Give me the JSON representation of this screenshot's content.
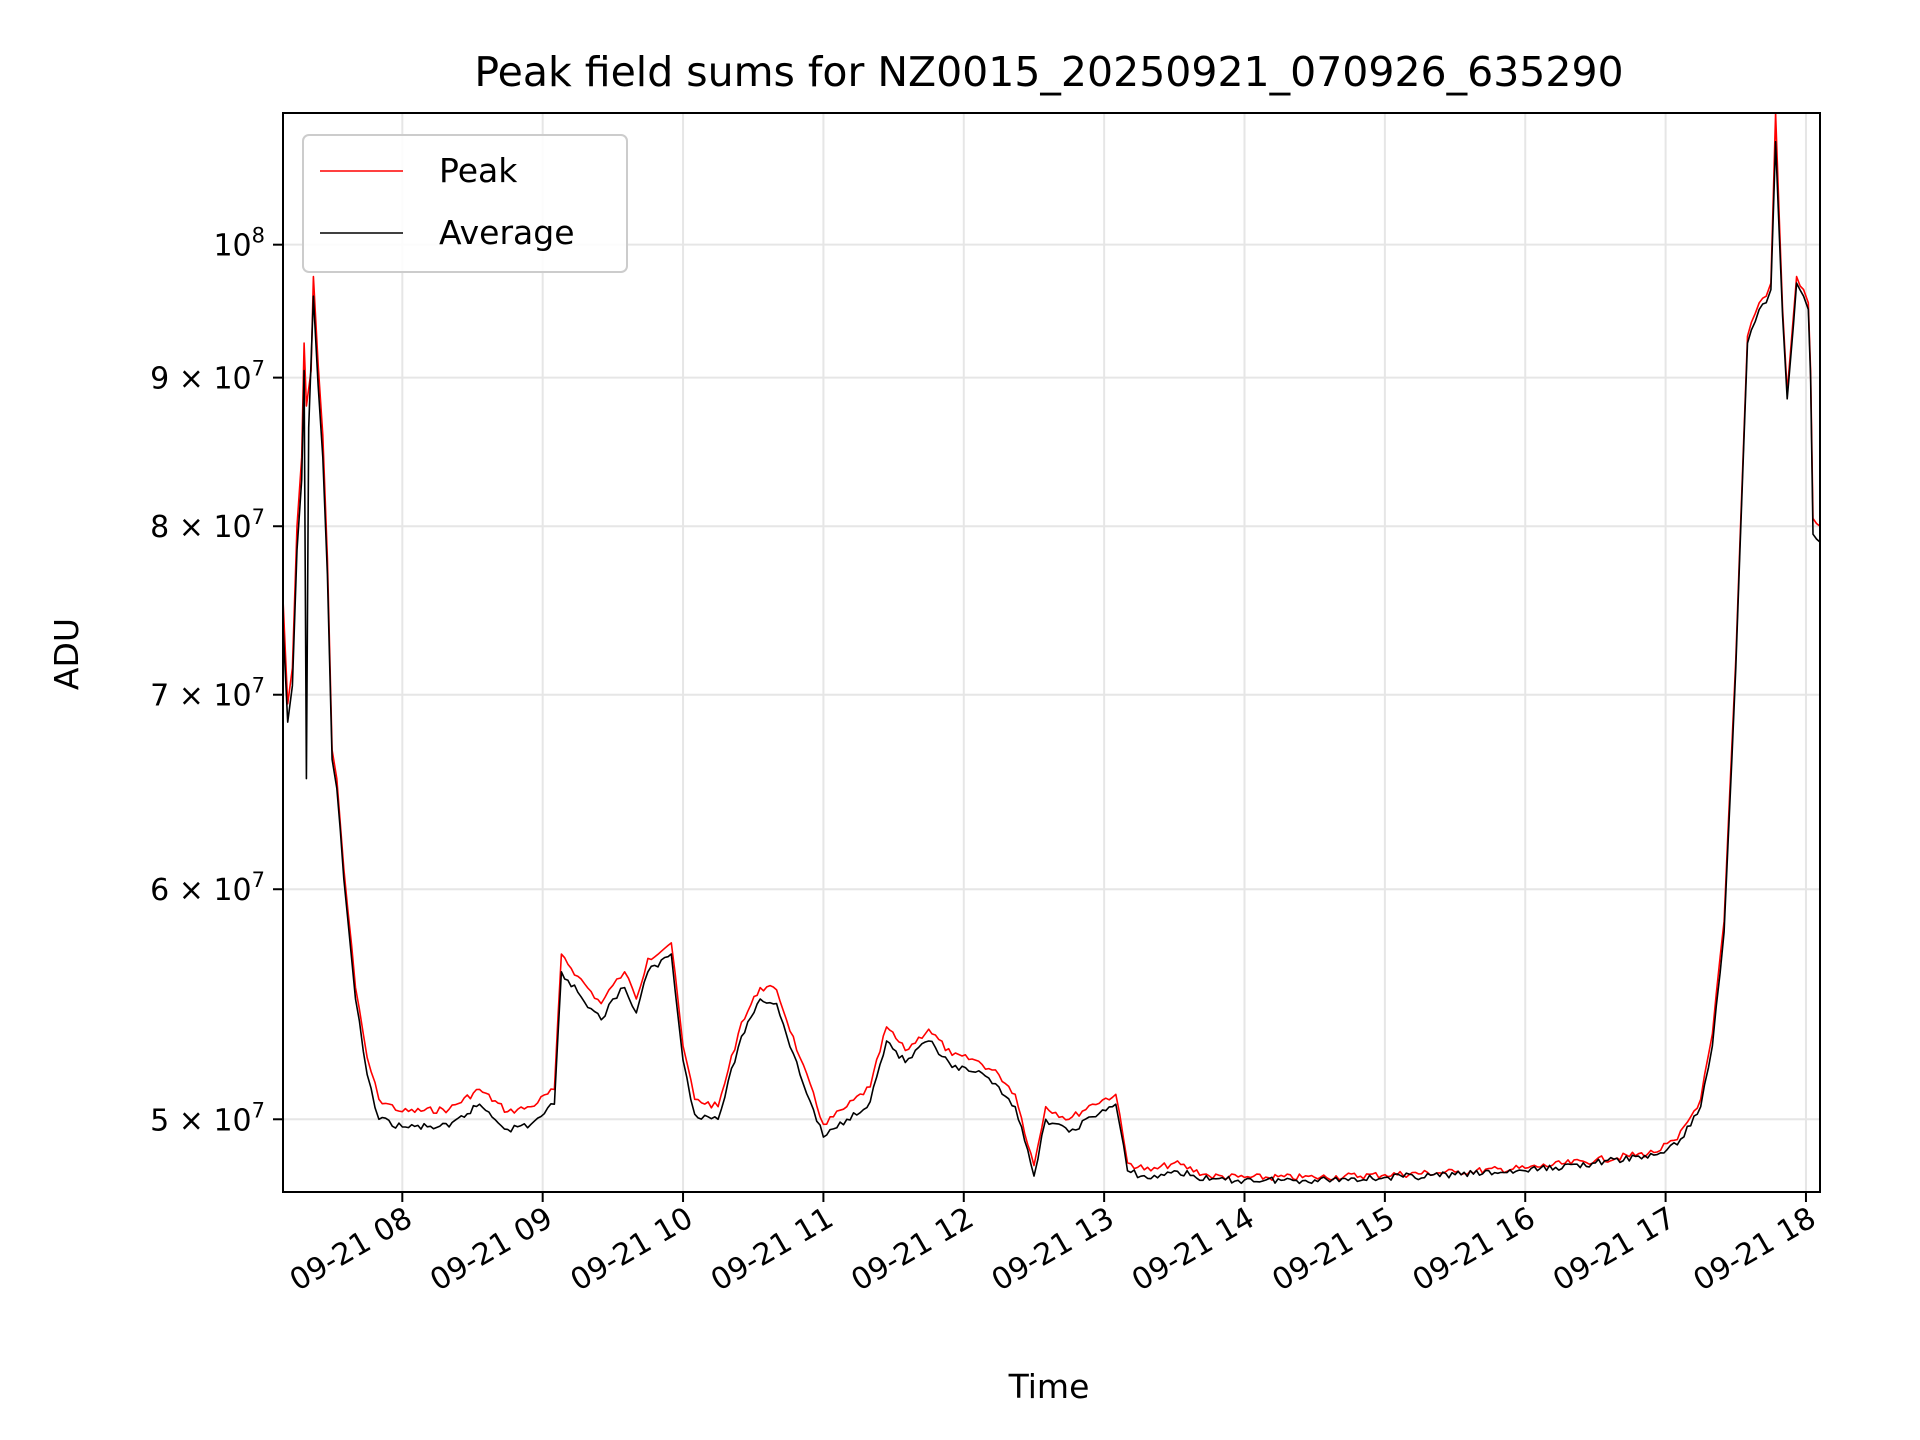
{
  "chart_data": {
    "type": "line",
    "title": "Peak field sums for NZ0015_20250921_070926_635290",
    "xlabel": "Time",
    "ylabel": "ADU",
    "x_scale": "time",
    "y_scale": "log",
    "xlim": [
      "2025-09-21 07:09",
      "2025-09-21 18:06"
    ],
    "ylim": [
      47200000,
      111000000
    ],
    "grid": true,
    "legend_position": "upper-left",
    "x_ticks": [
      {
        "value": "2025-09-21 08:00",
        "label": "09-21 08"
      },
      {
        "value": "2025-09-21 09:00",
        "label": "09-21 09"
      },
      {
        "value": "2025-09-21 10:00",
        "label": "09-21 10"
      },
      {
        "value": "2025-09-21 11:00",
        "label": "09-21 11"
      },
      {
        "value": "2025-09-21 12:00",
        "label": "09-21 12"
      },
      {
        "value": "2025-09-21 13:00",
        "label": "09-21 13"
      },
      {
        "value": "2025-09-21 14:00",
        "label": "09-21 14"
      },
      {
        "value": "2025-09-21 15:00",
        "label": "09-21 15"
      },
      {
        "value": "2025-09-21 16:00",
        "label": "09-21 16"
      },
      {
        "value": "2025-09-21 17:00",
        "label": "09-21 17"
      },
      {
        "value": "2025-09-21 18:00",
        "label": "09-21 18"
      }
    ],
    "y_ticks": [
      {
        "value": 50000000,
        "mantissa": "5",
        "exponent": "7"
      },
      {
        "value": 60000000,
        "mantissa": "6",
        "exponent": "7"
      },
      {
        "value": 70000000,
        "mantissa": "7",
        "exponent": "7"
      },
      {
        "value": 80000000,
        "mantissa": "8",
        "exponent": "7"
      },
      {
        "value": 90000000,
        "mantissa": "9",
        "exponent": "7"
      },
      {
        "value": 100000000,
        "mantissa": "",
        "exponent": "8"
      }
    ],
    "series": [
      {
        "name": "Peak",
        "color": "#ff0000",
        "points": [
          [
            "2025-09-21 07:09",
            75500000
          ],
          [
            "2025-09-21 07:11",
            69500000
          ],
          [
            "2025-09-21 07:13",
            71500000
          ],
          [
            "2025-09-21 07:15",
            80000000
          ],
          [
            "2025-09-21 07:17",
            84500000
          ],
          [
            "2025-09-21 07:18",
            92500000
          ],
          [
            "2025-09-21 07:19",
            88000000
          ],
          [
            "2025-09-21 07:21",
            90500000
          ],
          [
            "2025-09-21 07:22",
            97500000
          ],
          [
            "2025-09-21 07:24",
            91000000
          ],
          [
            "2025-09-21 07:26",
            86000000
          ],
          [
            "2025-09-21 07:28",
            78000000
          ],
          [
            "2025-09-21 07:30",
            67000000
          ],
          [
            "2025-09-21 07:32",
            65500000
          ],
          [
            "2025-09-21 07:35",
            61000000
          ],
          [
            "2025-09-21 07:40",
            55500000
          ],
          [
            "2025-09-21 07:45",
            52500000
          ],
          [
            "2025-09-21 07:50",
            50800000
          ],
          [
            "2025-09-21 08:00",
            50300000
          ],
          [
            "2025-09-21 08:20",
            50400000
          ],
          [
            "2025-09-21 08:33",
            51200000
          ],
          [
            "2025-09-21 08:45",
            50300000
          ],
          [
            "2025-09-21 08:55",
            50500000
          ],
          [
            "2025-09-21 09:05",
            51200000
          ],
          [
            "2025-09-21 09:08",
            57000000
          ],
          [
            "2025-09-21 09:15",
            56000000
          ],
          [
            "2025-09-21 09:25",
            54800000
          ],
          [
            "2025-09-21 09:30",
            55600000
          ],
          [
            "2025-09-21 09:35",
            56200000
          ],
          [
            "2025-09-21 09:40",
            55000000
          ],
          [
            "2025-09-21 09:45",
            56800000
          ],
          [
            "2025-09-21 09:55",
            57500000
          ],
          [
            "2025-09-21 10:00",
            53000000
          ],
          [
            "2025-09-21 10:05",
            50800000
          ],
          [
            "2025-09-21 10:15",
            50500000
          ],
          [
            "2025-09-21 10:25",
            54000000
          ],
          [
            "2025-09-21 10:33",
            55500000
          ],
          [
            "2025-09-21 10:40",
            55400000
          ],
          [
            "2025-09-21 10:50",
            52500000
          ],
          [
            "2025-09-21 11:00",
            49800000
          ],
          [
            "2025-09-21 11:10",
            50500000
          ],
          [
            "2025-09-21 11:20",
            51300000
          ],
          [
            "2025-09-21 11:27",
            53800000
          ],
          [
            "2025-09-21 11:35",
            52800000
          ],
          [
            "2025-09-21 11:45",
            53700000
          ],
          [
            "2025-09-21 11:55",
            52600000
          ],
          [
            "2025-09-21 12:05",
            52400000
          ],
          [
            "2025-09-21 12:15",
            51800000
          ],
          [
            "2025-09-21 12:22",
            51000000
          ],
          [
            "2025-09-21 12:30",
            48200000
          ],
          [
            "2025-09-21 12:35",
            50500000
          ],
          [
            "2025-09-21 12:45",
            50000000
          ],
          [
            "2025-09-21 12:55",
            50600000
          ],
          [
            "2025-09-21 13:05",
            51000000
          ],
          [
            "2025-09-21 13:10",
            48300000
          ],
          [
            "2025-09-21 13:20",
            48000000
          ],
          [
            "2025-09-21 13:30",
            48300000
          ],
          [
            "2025-09-21 13:45",
            47800000
          ],
          [
            "2025-09-21 14:00",
            47750000
          ],
          [
            "2025-09-21 14:30",
            47750000
          ],
          [
            "2025-09-21 15:00",
            47850000
          ],
          [
            "2025-09-21 15:30",
            47950000
          ],
          [
            "2025-09-21 16:00",
            48100000
          ],
          [
            "2025-09-21 16:30",
            48400000
          ],
          [
            "2025-09-21 16:55",
            48700000
          ],
          [
            "2025-09-21 17:05",
            49200000
          ],
          [
            "2025-09-21 17:15",
            50800000
          ],
          [
            "2025-09-21 17:20",
            53500000
          ],
          [
            "2025-09-21 17:25",
            58500000
          ],
          [
            "2025-09-21 17:30",
            72000000
          ],
          [
            "2025-09-21 17:35",
            93000000
          ],
          [
            "2025-09-21 17:40",
            95500000
          ],
          [
            "2025-09-21 17:43",
            96000000
          ],
          [
            "2025-09-21 17:45",
            97000000
          ],
          [
            "2025-09-21 17:47",
            111000000
          ],
          [
            "2025-09-21 17:50",
            95000000
          ],
          [
            "2025-09-21 17:52",
            89000000
          ],
          [
            "2025-09-21 17:56",
            97500000
          ],
          [
            "2025-09-21 17:59",
            96500000
          ],
          [
            "2025-09-21 18:01",
            95500000
          ],
          [
            "2025-09-21 18:02",
            90500000
          ],
          [
            "2025-09-21 18:03",
            80500000
          ],
          [
            "2025-09-21 18:06",
            80000000
          ]
        ]
      },
      {
        "name": "Average",
        "color": "#000000",
        "points": [
          [
            "2025-09-21 07:09",
            74000000
          ],
          [
            "2025-09-21 07:11",
            68500000
          ],
          [
            "2025-09-21 07:13",
            70500000
          ],
          [
            "2025-09-21 07:15",
            78500000
          ],
          [
            "2025-09-21 07:17",
            83000000
          ],
          [
            "2025-09-21 07:18",
            90500000
          ],
          [
            "2025-09-21 07:19",
            65500000
          ],
          [
            "2025-09-21 07:20",
            86500000
          ],
          [
            "2025-09-21 07:22",
            96000000
          ],
          [
            "2025-09-21 07:24",
            89500000
          ],
          [
            "2025-09-21 07:26",
            84500000
          ],
          [
            "2025-09-21 07:28",
            77000000
          ],
          [
            "2025-09-21 07:30",
            66500000
          ],
          [
            "2025-09-21 07:32",
            65000000
          ],
          [
            "2025-09-21 07:35",
            60500000
          ],
          [
            "2025-09-21 07:40",
            55000000
          ],
          [
            "2025-09-21 07:45",
            51800000
          ],
          [
            "2025-09-21 07:50",
            50000000
          ],
          [
            "2025-09-21 08:00",
            49700000
          ],
          [
            "2025-09-21 08:20",
            49700000
          ],
          [
            "2025-09-21 08:33",
            50600000
          ],
          [
            "2025-09-21 08:45",
            49600000
          ],
          [
            "2025-09-21 08:55",
            49800000
          ],
          [
            "2025-09-21 09:05",
            50600000
          ],
          [
            "2025-09-21 09:08",
            56200000
          ],
          [
            "2025-09-21 09:15",
            55300000
          ],
          [
            "2025-09-21 09:25",
            54100000
          ],
          [
            "2025-09-21 09:30",
            55000000
          ],
          [
            "2025-09-21 09:35",
            55500000
          ],
          [
            "2025-09-21 09:40",
            54400000
          ],
          [
            "2025-09-21 09:45",
            56200000
          ],
          [
            "2025-09-21 09:55",
            57000000
          ],
          [
            "2025-09-21 10:00",
            52400000
          ],
          [
            "2025-09-21 10:05",
            50200000
          ],
          [
            "2025-09-21 10:15",
            50000000
          ],
          [
            "2025-09-21 10:25",
            53400000
          ],
          [
            "2025-09-21 10:33",
            55000000
          ],
          [
            "2025-09-21 10:40",
            54800000
          ],
          [
            "2025-09-21 10:50",
            51800000
          ],
          [
            "2025-09-21 11:00",
            49300000
          ],
          [
            "2025-09-21 11:10",
            50000000
          ],
          [
            "2025-09-21 11:20",
            50700000
          ],
          [
            "2025-09-21 11:27",
            53200000
          ],
          [
            "2025-09-21 11:35",
            52300000
          ],
          [
            "2025-09-21 11:45",
            53200000
          ],
          [
            "2025-09-21 11:55",
            52100000
          ],
          [
            "2025-09-21 12:05",
            51900000
          ],
          [
            "2025-09-21 12:15",
            51300000
          ],
          [
            "2025-09-21 12:22",
            50500000
          ],
          [
            "2025-09-21 12:30",
            47800000
          ],
          [
            "2025-09-21 12:35",
            50000000
          ],
          [
            "2025-09-21 12:45",
            49500000
          ],
          [
            "2025-09-21 12:55",
            50100000
          ],
          [
            "2025-09-21 13:05",
            50600000
          ],
          [
            "2025-09-21 13:10",
            48000000
          ],
          [
            "2025-09-21 13:20",
            47700000
          ],
          [
            "2025-09-21 13:30",
            48000000
          ],
          [
            "2025-09-21 13:45",
            47650000
          ],
          [
            "2025-09-21 14:00",
            47650000
          ],
          [
            "2025-09-21 14:30",
            47650000
          ],
          [
            "2025-09-21 15:00",
            47750000
          ],
          [
            "2025-09-21 15:30",
            47850000
          ],
          [
            "2025-09-21 16:00",
            48000000
          ],
          [
            "2025-09-21 16:30",
            48300000
          ],
          [
            "2025-09-21 16:55",
            48600000
          ],
          [
            "2025-09-21 17:05",
            49000000
          ],
          [
            "2025-09-21 17:15",
            50500000
          ],
          [
            "2025-09-21 17:20",
            53000000
          ],
          [
            "2025-09-21 17:25",
            58000000
          ],
          [
            "2025-09-21 17:30",
            71500000
          ],
          [
            "2025-09-21 17:35",
            92500000
          ],
          [
            "2025-09-21 17:40",
            95000000
          ],
          [
            "2025-09-21 17:43",
            95500000
          ],
          [
            "2025-09-21 17:45",
            96500000
          ],
          [
            "2025-09-21 17:47",
            108500000
          ],
          [
            "2025-09-21 17:50",
            94500000
          ],
          [
            "2025-09-21 17:52",
            88500000
          ],
          [
            "2025-09-21 17:56",
            97000000
          ],
          [
            "2025-09-21 17:59",
            96000000
          ],
          [
            "2025-09-21 18:01",
            95000000
          ],
          [
            "2025-09-21 18:02",
            90000000
          ],
          [
            "2025-09-21 18:03",
            79500000
          ],
          [
            "2025-09-21 18:06",
            79000000
          ]
        ]
      }
    ]
  }
}
